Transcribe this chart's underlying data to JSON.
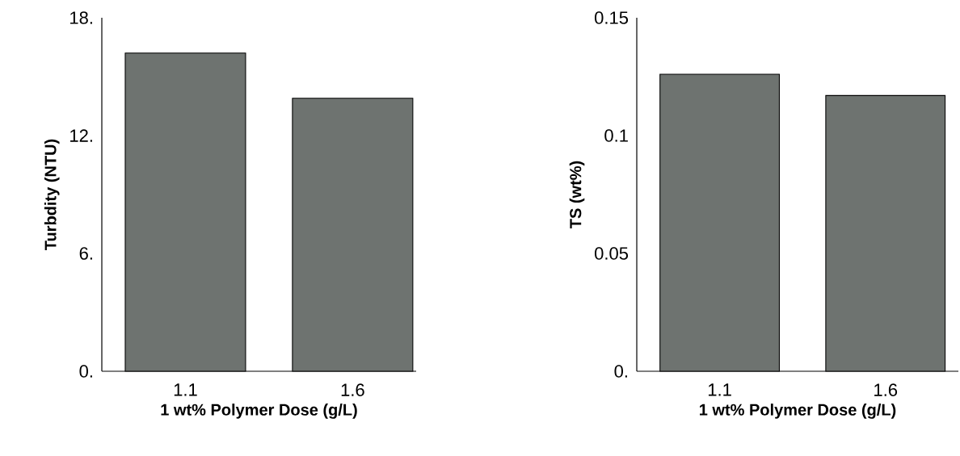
{
  "chart_data": [
    {
      "type": "bar",
      "categories": [
        "1.1",
        "1.6"
      ],
      "values": [
        16.2,
        13.9
      ],
      "color": "#6e7370",
      "xlabel": "1 wt% Polymer Dose (g/L)",
      "ylabel": "Turbdity (NTU)",
      "ylim": [
        0,
        18
      ],
      "yticks": [
        {
          "value": 0,
          "label": "0."
        },
        {
          "value": 6,
          "label": "6."
        },
        {
          "value": 12,
          "label": "12."
        },
        {
          "value": 18,
          "label": "18."
        }
      ]
    },
    {
      "type": "bar",
      "categories": [
        "1.1",
        "1.6"
      ],
      "values": [
        0.126,
        0.117
      ],
      "color": "#6e7370",
      "xlabel": "1 wt% Polymer Dose (g/L)",
      "ylabel": "TS (wt%)",
      "ylim": [
        0,
        0.15
      ],
      "yticks": [
        {
          "value": 0,
          "label": "0."
        },
        {
          "value": 0.05,
          "label": "0.05"
        },
        {
          "value": 0.1,
          "label": "0.1"
        },
        {
          "value": 0.15,
          "label": "0.15"
        }
      ]
    }
  ]
}
